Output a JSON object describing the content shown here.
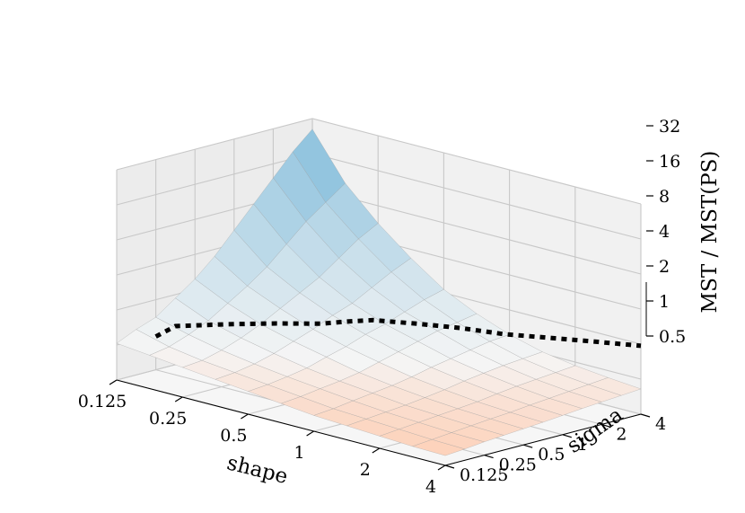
{
  "chart_data": {
    "type": "surface3d",
    "title": "",
    "xlabel": "shape",
    "ylabel": "sigma",
    "zlabel": "MST / MST(PS)",
    "x_ticks": [
      "0.125",
      "0.25",
      "0.5",
      "1",
      "2",
      "4"
    ],
    "y_ticks": [
      "0.125",
      "0.25",
      "0.5",
      "1",
      "2",
      "4"
    ],
    "z_ticks": [
      "0.5",
      "1",
      "2",
      "4",
      "8",
      "16",
      "32"
    ],
    "x_log2": [
      -3,
      -2.5,
      -2,
      -1.5,
      -1,
      -0.5,
      0,
      0.5,
      1,
      1.5,
      2
    ],
    "y_log2": [
      -3,
      -2.5,
      -2,
      -1.5,
      -1,
      -0.5,
      0,
      0.5,
      1,
      1.5,
      2
    ],
    "z_log2_range": [
      -1,
      5
    ],
    "grid": true,
    "colormap": "diverging blue-white-red (RdBu), light",
    "colors": {
      "high": "#8fc3de",
      "mid": "#f5f5f5",
      "low": "#fdd2bb"
    },
    "z_log2": [
      [
        0.05,
        -0.05,
        -0.15,
        -0.25,
        -0.35,
        -0.45,
        -0.55,
        -0.6,
        -0.65,
        -0.7,
        -0.72
      ],
      [
        0.3,
        0.05,
        -0.1,
        -0.2,
        -0.3,
        -0.4,
        -0.5,
        -0.55,
        -0.6,
        -0.65,
        -0.68
      ],
      [
        0.5,
        0.25,
        0.05,
        -0.1,
        -0.22,
        -0.32,
        -0.42,
        -0.5,
        -0.55,
        -0.6,
        -0.62
      ],
      [
        0.9,
        0.5,
        0.25,
        0.05,
        -0.12,
        -0.25,
        -0.35,
        -0.45,
        -0.5,
        -0.55,
        -0.58
      ],
      [
        1.3,
        0.85,
        0.5,
        0.25,
        0.05,
        -0.15,
        -0.28,
        -0.38,
        -0.45,
        -0.5,
        -0.54
      ],
      [
        1.8,
        1.2,
        0.8,
        0.45,
        0.2,
        0.0,
        -0.18,
        -0.3,
        -0.4,
        -0.46,
        -0.5
      ],
      [
        2.4,
        1.6,
        1.1,
        0.7,
        0.4,
        0.15,
        -0.05,
        -0.2,
        -0.32,
        -0.4,
        -0.45
      ],
      [
        3.0,
        2.1,
        1.4,
        0.9,
        0.55,
        0.3,
        0.05,
        -0.12,
        -0.25,
        -0.35,
        -0.4
      ],
      [
        3.6,
        2.6,
        1.8,
        1.2,
        0.75,
        0.45,
        0.15,
        -0.05,
        -0.2,
        -0.3,
        -0.36
      ],
      [
        4.2,
        3.0,
        2.2,
        1.5,
        0.95,
        0.55,
        0.25,
        0.0,
        -0.15,
        -0.25,
        -0.32
      ],
      [
        4.7,
        3.4,
        2.5,
        1.75,
        1.1,
        0.65,
        0.3,
        0.05,
        -0.1,
        -0.2,
        -0.28
      ]
    ],
    "frontier_line": {
      "style": "black dotted",
      "x_log2": [
        -3,
        -3,
        -2.5,
        -2,
        -1.5,
        -1.25,
        -1,
        -0.5,
        0,
        0.5,
        1,
        1.5,
        2
      ],
      "y_log2": [
        -2,
        -1.5,
        -1,
        -0.6,
        -0.3,
        0,
        0.2,
        0.5,
        0.75,
        1.0,
        1.3,
        1.6,
        2
      ],
      "z_log2": [
        -0.05,
        0.1,
        0.25,
        0.4,
        0.55,
        0.65,
        0.75,
        0.8,
        0.85,
        0.85,
        0.9,
        0.95,
        0.95
      ]
    }
  }
}
